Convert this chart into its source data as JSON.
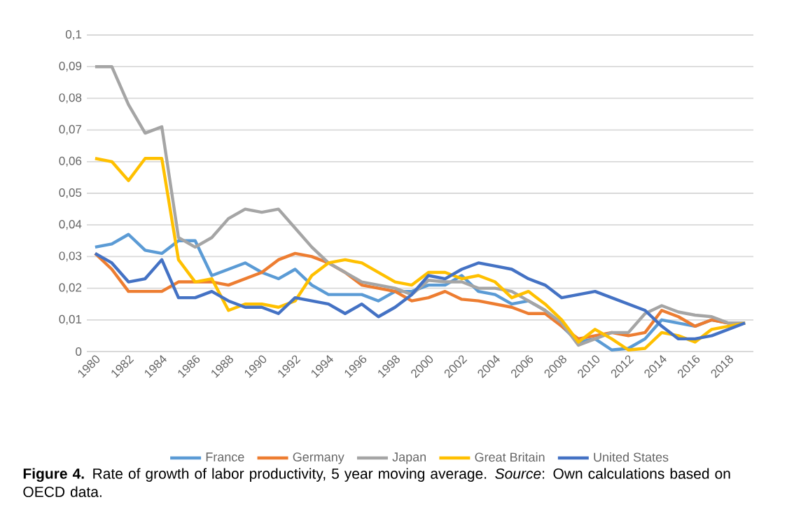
{
  "chart_data": {
    "type": "line",
    "title": "**Figure 4.** Rate of growth of labor productivity, 5 year moving average. *Source*: Own calculations based on OECD data.",
    "categories": [
      "1980",
      null,
      "1982",
      null,
      "1984",
      null,
      "1986",
      null,
      "1988",
      null,
      "1990",
      null,
      "1992",
      null,
      "1994",
      null,
      "1996",
      null,
      "1998",
      null,
      "2000",
      null,
      "2002",
      null,
      "2004",
      null,
      "2006",
      null,
      "2008",
      null,
      "2010",
      null,
      "2012",
      null,
      "2014",
      null,
      "2016",
      null,
      "2018",
      null
    ],
    "series": [
      {
        "name": "France",
        "color": "#5b9bd5",
        "values": [
          0.033,
          0.034,
          0.037,
          0.032,
          0.031,
          0.035,
          0.035,
          0.024,
          0.026,
          0.028,
          0.025,
          0.023,
          0.026,
          0.021,
          0.018,
          0.018,
          0.018,
          0.016,
          0.019,
          0.019,
          0.021,
          0.021,
          0.024,
          0.019,
          0.018,
          0.015,
          0.016,
          0.013,
          0.008,
          0.003,
          0.004,
          0.0005,
          0.001,
          0.004,
          0.01,
          0.009,
          0.008,
          0.01,
          0.009,
          0.009
        ]
      },
      {
        "name": "Germany",
        "color": "#ed7d31",
        "values": [
          0.031,
          0.026,
          0.019,
          0.019,
          0.019,
          0.022,
          0.022,
          0.022,
          0.021,
          0.023,
          0.025,
          0.029,
          0.031,
          0.03,
          0.028,
          0.025,
          0.021,
          0.02,
          0.019,
          0.016,
          0.017,
          0.019,
          0.0165,
          0.016,
          0.015,
          0.014,
          0.012,
          0.012,
          0.008,
          0.004,
          0.005,
          0.006,
          0.005,
          0.006,
          0.013,
          0.011,
          0.008,
          0.01,
          0.009,
          0.009
        ]
      },
      {
        "name": "Japan",
        "color": "#a5a5a5",
        "values": [
          0.09,
          0.09,
          0.078,
          0.069,
          0.071,
          0.036,
          0.033,
          0.036,
          0.042,
          0.045,
          0.044,
          0.045,
          0.039,
          0.033,
          0.028,
          0.025,
          0.022,
          0.021,
          0.02,
          0.018,
          0.0225,
          0.022,
          0.022,
          0.02,
          0.02,
          0.019,
          0.016,
          0.013,
          0.009,
          0.002,
          0.004,
          0.006,
          0.006,
          0.012,
          0.0145,
          0.0125,
          0.0115,
          0.011,
          0.009,
          0.009
        ]
      },
      {
        "name": "Great Britain",
        "color": "#ffc000",
        "values": [
          0.061,
          0.06,
          0.054,
          0.061,
          0.061,
          0.029,
          0.022,
          0.023,
          0.013,
          0.015,
          0.015,
          0.014,
          0.016,
          0.024,
          0.028,
          0.029,
          0.028,
          0.025,
          0.022,
          0.021,
          0.025,
          0.025,
          0.023,
          0.024,
          0.022,
          0.017,
          0.019,
          0.015,
          0.01,
          0.003,
          0.007,
          0.004,
          0.0005,
          0.001,
          0.006,
          0.005,
          0.003,
          0.007,
          0.008,
          0.009
        ]
      },
      {
        "name": "United States",
        "color": "#4472c4",
        "values": [
          0.031,
          0.028,
          0.022,
          0.023,
          0.029,
          0.017,
          0.017,
          0.019,
          0.016,
          0.014,
          0.014,
          0.012,
          0.017,
          0.016,
          0.015,
          0.012,
          0.015,
          0.011,
          0.014,
          0.018,
          0.024,
          0.023,
          0.026,
          0.028,
          0.027,
          0.026,
          0.023,
          0.021,
          0.017,
          0.018,
          0.019,
          0.017,
          0.015,
          0.013,
          0.008,
          0.004,
          0.004,
          0.005,
          0.007,
          0.009
        ]
      }
    ],
    "ylim": [
      0,
      0.1
    ],
    "yticks": [
      0,
      {
        "value": 0.01,
        "label": "0,01"
      },
      {
        "value": 0.02,
        "label": "0,02"
      },
      {
        "value": 0.03,
        "label": "0,03"
      },
      {
        "value": 0.04,
        "label": "0,04"
      },
      {
        "value": 0.05,
        "label": "0,05"
      },
      {
        "value": 0.06,
        "label": "0,06"
      },
      {
        "value": 0.07,
        "label": "0,07"
      },
      {
        "value": 0.08,
        "label": "0,08"
      },
      {
        "value": 0.09,
        "label": "0,09"
      },
      {
        "value": 0.1,
        "label": "0,1"
      }
    ],
    "grid": "y",
    "legend": "bottom"
  }
}
